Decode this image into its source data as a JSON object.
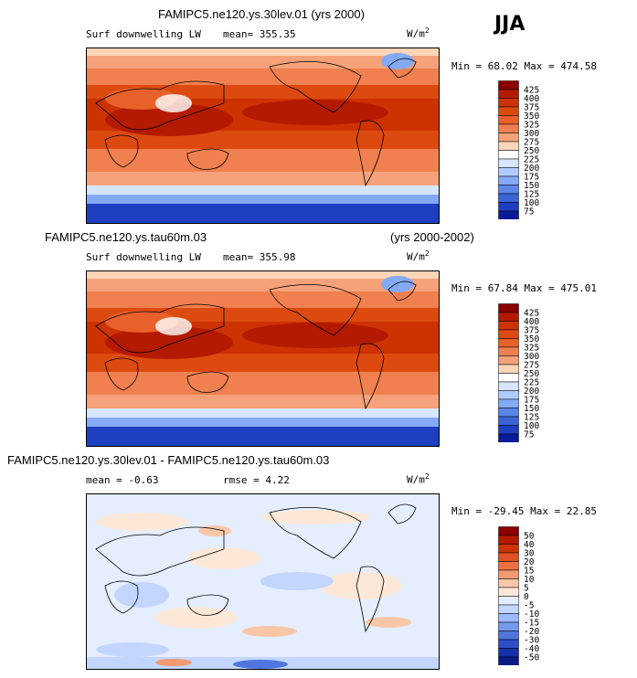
{
  "season": "JJA",
  "panels": [
    {
      "title_left": "FAMIPC5.ne120.ys.30lev.01 (yrs 2000)",
      "title_right": "",
      "variable": "Surf downwelling LW",
      "stat1": "mean= 355.35",
      "stat2": "",
      "units": "W/m",
      "units_sup": "2",
      "minmax": "Min =  68.02 Max = 474.58",
      "palette": "abs"
    },
    {
      "title_left": "FAMIPC5.ne120.ys.tau60m.03",
      "title_right": "(yrs 2000-2002)",
      "variable": "Surf downwelling LW",
      "stat1": "mean= 355.98",
      "stat2": "",
      "units": "W/m",
      "units_sup": "2",
      "minmax": "Min =  67.84 Max = 475.01",
      "palette": "abs"
    },
    {
      "title_left": "FAMIPC5.ne120.ys.30lev.01 - FAMIPC5.ne120.ys.tau60m.03",
      "title_right": "",
      "variable": "",
      "stat1": "mean =   -0.63",
      "stat2": "rmse =    4.22",
      "units": "W/m",
      "units_sup": "2",
      "minmax": "Min = -29.45 Max =  22.85",
      "palette": "diff"
    }
  ],
  "colorbars": {
    "abs": {
      "levels": [
        "425",
        "400",
        "375",
        "350",
        "325",
        "300",
        "275",
        "250",
        "225",
        "200",
        "175",
        "150",
        "125",
        "100",
        "75"
      ],
      "colors": [
        "#8b0000",
        "#b31a00",
        "#cc3300",
        "#dd4a10",
        "#e8602a",
        "#f08050",
        "#f5a27a",
        "#fbd5b8",
        "#ffffff",
        "#d6e6ff",
        "#b0ccff",
        "#85aaf5",
        "#5a86e8",
        "#3a63d8",
        "#1d3fc0",
        "#0a1a99"
      ]
    },
    "diff": {
      "levels": [
        "50",
        "40",
        "30",
        "20",
        "15",
        "10",
        "5",
        "0",
        "-5",
        "-10",
        "-15",
        "-20",
        "-30",
        "-40",
        "-50"
      ],
      "colors": [
        "#8b0000",
        "#b31a00",
        "#cc3300",
        "#e05020",
        "#ec7040",
        "#f39a72",
        "#f9c7a8",
        "#fde8d8",
        "#e4eeff",
        "#c3d6ff",
        "#9dbaff",
        "#7599ee",
        "#4f75de",
        "#2c4fc8",
        "#1530a8",
        "#0a1a88"
      ]
    }
  }
}
